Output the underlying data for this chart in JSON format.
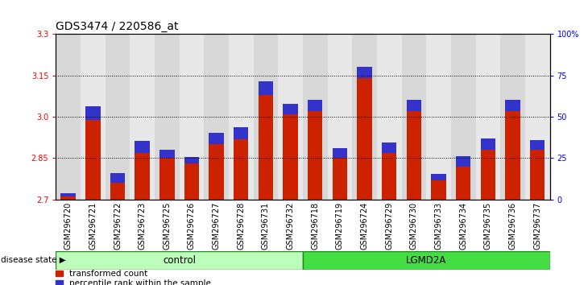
{
  "title": "GDS3474 / 220586_at",
  "categories": [
    "GSM296720",
    "GSM296721",
    "GSM296722",
    "GSM296723",
    "GSM296725",
    "GSM296726",
    "GSM296727",
    "GSM296728",
    "GSM296731",
    "GSM296732",
    "GSM296718",
    "GSM296719",
    "GSM296724",
    "GSM296729",
    "GSM296730",
    "GSM296733",
    "GSM296734",
    "GSM296735",
    "GSM296736",
    "GSM296737"
  ],
  "red_values": [
    2.71,
    2.99,
    2.76,
    2.87,
    2.85,
    2.83,
    2.9,
    2.92,
    3.08,
    3.01,
    3.02,
    2.85,
    3.14,
    2.87,
    3.02,
    2.77,
    2.82,
    2.88,
    3.02,
    2.88
  ],
  "blue_pct": [
    2,
    8,
    6,
    7,
    5,
    4,
    7,
    7,
    8,
    6,
    7,
    6,
    7,
    6,
    7,
    4,
    6,
    7,
    7,
    6
  ],
  "control_count": 10,
  "ylim_left": [
    2.7,
    3.3
  ],
  "ylim_right": [
    0,
    100
  ],
  "yticks_left": [
    2.7,
    2.85,
    3.0,
    3.15,
    3.3
  ],
  "yticks_right": [
    0,
    25,
    50,
    75,
    100
  ],
  "ytick_labels_right": [
    "0",
    "25",
    "50",
    "75",
    "100%"
  ],
  "grid_lines": [
    3.15,
    3.0,
    2.85
  ],
  "bar_color_red": "#cc2200",
  "bar_color_blue": "#3333cc",
  "bar_width": 0.6,
  "bg_plot": "#ffffff",
  "col_bg_even": "#d8d8d8",
  "col_bg_odd": "#e8e8e8",
  "bg_control": "#bbffbb",
  "bg_lgmd2a": "#44dd44",
  "label_control": "control",
  "label_lgmd2a": "LGMD2A",
  "legend_red": "transformed count",
  "legend_blue": "percentile rank within the sample",
  "disease_state_label": "disease state",
  "title_fontsize": 10,
  "tick_fontsize": 7,
  "label_fontsize": 8
}
